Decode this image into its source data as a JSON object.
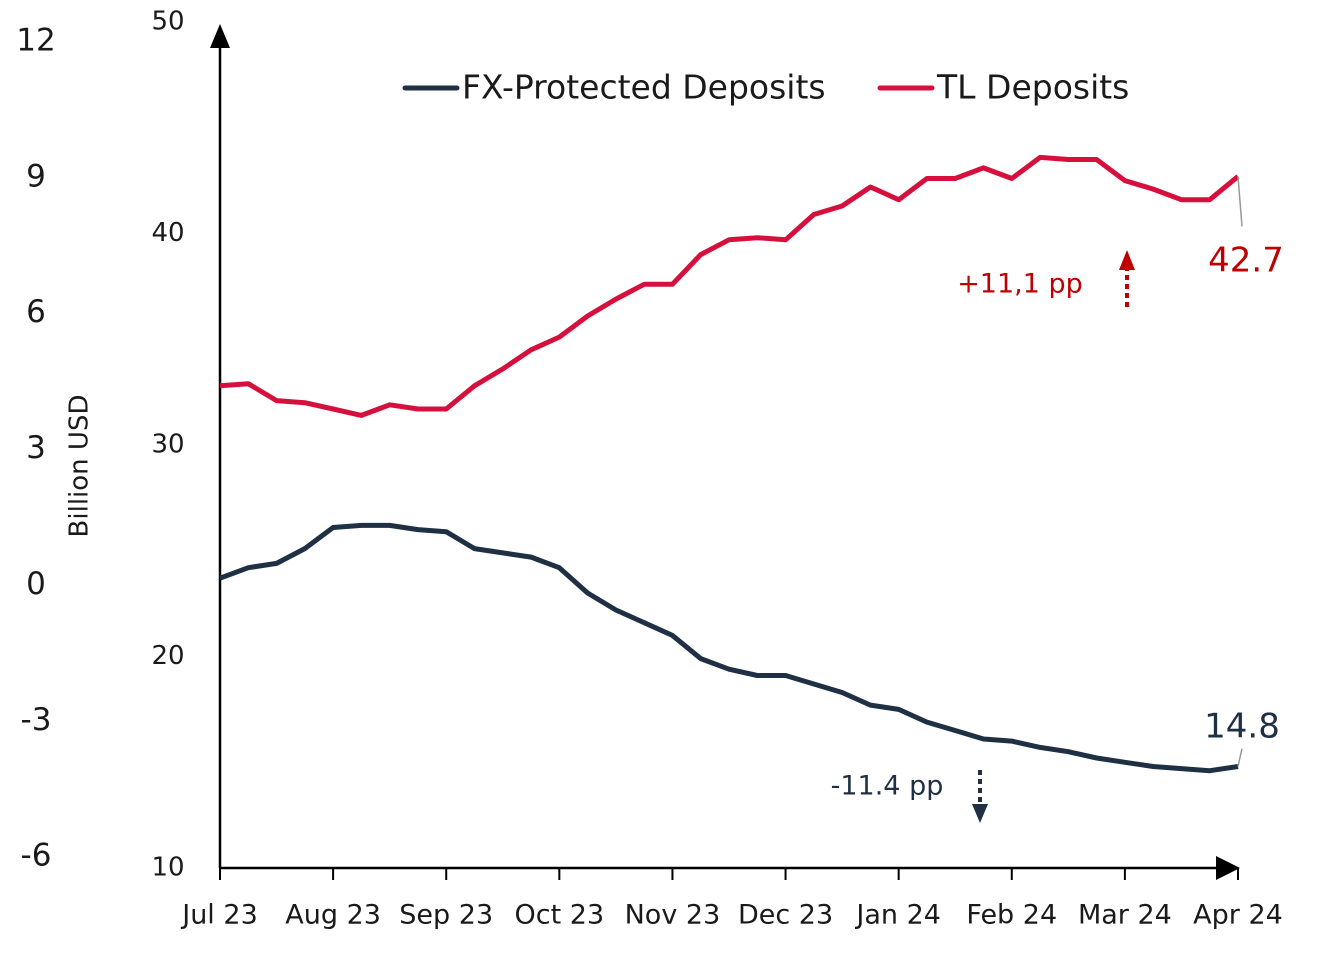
{
  "chart_data": {
    "type": "line",
    "y_label": "Billion USD",
    "categories": [
      "Jul 23",
      null,
      null,
      null,
      "Aug 23",
      null,
      null,
      null,
      "Sep 23",
      null,
      null,
      null,
      "Oct 23",
      null,
      null,
      null,
      "Nov 23",
      null,
      null,
      null,
      "Dec 23",
      null,
      null,
      null,
      "Jan 24",
      null,
      null,
      null,
      "Feb 24",
      null,
      null,
      null,
      "Mar 24",
      null,
      null,
      null,
      "Apr 24"
    ],
    "series": [
      {
        "name": "FX-Protected Deposits",
        "color": "#1f3044",
        "values": [
          23.7,
          24.2,
          24.4,
          25.1,
          26.1,
          26.2,
          26.2,
          26.0,
          25.9,
          25.1,
          24.9,
          24.7,
          24.2,
          23.0,
          22.2,
          21.6,
          21.0,
          19.9,
          19.4,
          19.1,
          19.1,
          18.7,
          18.3,
          17.7,
          17.5,
          16.9,
          16.5,
          16.1,
          16.0,
          15.7,
          15.5,
          15.2,
          15.0,
          14.8,
          14.7,
          14.6,
          14.8
        ]
      },
      {
        "name": "TL Deposits",
        "color": "#d6103c",
        "values": [
          32.8,
          32.9,
          32.1,
          32.0,
          31.7,
          31.4,
          31.9,
          31.7,
          31.7,
          32.8,
          33.6,
          34.5,
          35.1,
          36.1,
          36.9,
          37.6,
          37.6,
          39.0,
          39.7,
          39.8,
          39.7,
          40.9,
          41.3,
          42.2,
          41.6,
          42.6,
          42.6,
          43.1,
          42.6,
          43.6,
          43.5,
          43.5,
          42.5,
          42.1,
          41.6,
          41.6,
          42.7
        ]
      }
    ],
    "ylim": [
      10,
      50
    ],
    "yticks": [
      10,
      20,
      30,
      40,
      50
    ],
    "y2lim": [
      -6.24,
      12.44
    ],
    "y2ticks": [
      -6,
      -3,
      0,
      3,
      6,
      9,
      12
    ],
    "grid": false,
    "legend": "top",
    "annotations": [
      {
        "text": "+11,1 pp",
        "color": "#c00000"
      },
      {
        "text": "-11.4 pp",
        "color": "#1f3044"
      }
    ]
  }
}
